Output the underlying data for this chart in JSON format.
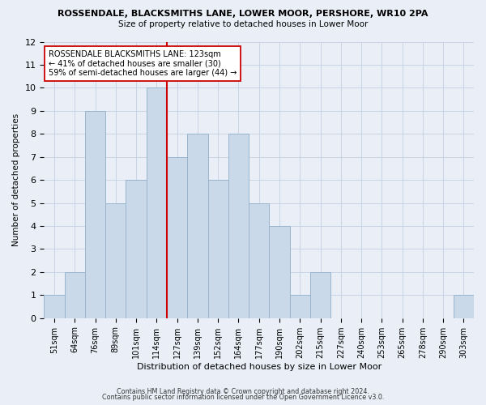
{
  "title1": "ROSSENDALE, BLACKSMITHS LANE, LOWER MOOR, PERSHORE, WR10 2PA",
  "title2": "Size of property relative to detached houses in Lower Moor",
  "xlabel": "Distribution of detached houses by size in Lower Moor",
  "ylabel": "Number of detached properties",
  "bar_labels": [
    "51sqm",
    "64sqm",
    "76sqm",
    "89sqm",
    "101sqm",
    "114sqm",
    "127sqm",
    "139sqm",
    "152sqm",
    "164sqm",
    "177sqm",
    "190sqm",
    "202sqm",
    "215sqm",
    "227sqm",
    "240sqm",
    "253sqm",
    "265sqm",
    "278sqm",
    "290sqm",
    "303sqm"
  ],
  "bar_values": [
    1,
    2,
    9,
    5,
    6,
    10,
    7,
    8,
    6,
    8,
    5,
    4,
    1,
    2,
    0,
    0,
    0,
    0,
    0,
    0,
    1
  ],
  "bar_color": "#c9d9ea",
  "bar_edgecolor": "#9ab4cc",
  "vline_x": 5.5,
  "vline_color": "#cc0000",
  "annotation_title": "ROSSENDALE BLACKSMITHS LANE: 123sqm",
  "annotation_line1": "← 41% of detached houses are smaller (30)",
  "annotation_line2": "59% of semi-detached houses are larger (44) →",
  "annotation_box_color": "#ffffff",
  "annotation_box_edgecolor": "#cc0000",
  "ylim": [
    0,
    12
  ],
  "yticks": [
    0,
    1,
    2,
    3,
    4,
    5,
    6,
    7,
    8,
    9,
    10,
    11,
    12
  ],
  "grid_color": "#c8d4e4",
  "bg_color": "#eaeff7",
  "footer1": "Contains HM Land Registry data © Crown copyright and database right 2024.",
  "footer2": "Contains public sector information licensed under the Open Government Licence v3.0."
}
